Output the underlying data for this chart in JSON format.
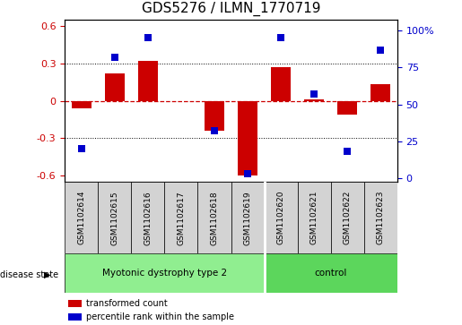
{
  "title": "GDS5276 / ILMN_1770719",
  "samples": [
    "GSM1102614",
    "GSM1102615",
    "GSM1102616",
    "GSM1102617",
    "GSM1102618",
    "GSM1102619",
    "GSM1102620",
    "GSM1102621",
    "GSM1102622",
    "GSM1102623"
  ],
  "red_values": [
    -0.06,
    0.22,
    0.32,
    0.0,
    -0.24,
    -0.6,
    0.27,
    0.01,
    -0.11,
    0.13
  ],
  "blue_values": [
    20,
    82,
    95,
    null,
    32,
    3,
    95,
    57,
    18,
    87
  ],
  "blue_yaxis_ticks": [
    0,
    25,
    50,
    75,
    100
  ],
  "blue_yaxis_labels": [
    "0",
    "25",
    "50",
    "75",
    "100%"
  ],
  "red_yaxis_ticks": [
    -0.6,
    -0.3,
    0.0,
    0.3,
    0.6
  ],
  "red_yaxis_labels": [
    "-0.6",
    "-0.3",
    "0",
    "0.3",
    "0.6"
  ],
  "ylim_red": [
    -0.65,
    0.65
  ],
  "ylim_blue": [
    -2.5,
    107.5
  ],
  "disease_groups": [
    {
      "label": "Myotonic dystrophy type 2",
      "start": 0,
      "end": 5,
      "color": "#90ee90"
    },
    {
      "label": "control",
      "start": 6,
      "end": 9,
      "color": "#5cd65c"
    }
  ],
  "group_separator": 5.5,
  "legend_items": [
    {
      "color": "#cc0000",
      "label": "transformed count"
    },
    {
      "color": "#0000cc",
      "label": "percentile rank within the sample"
    }
  ],
  "bar_color": "#cc0000",
  "dot_color": "#0000cc",
  "bar_width": 0.6,
  "dot_size": 30,
  "title_fontsize": 11,
  "tick_color_red": "#cc0000",
  "tick_color_blue": "#0000cc",
  "zero_line_color": "#cc0000",
  "grid_color": "black",
  "sample_box_color": "#d3d3d3",
  "plot_bg": "white",
  "fig_bg": "white"
}
